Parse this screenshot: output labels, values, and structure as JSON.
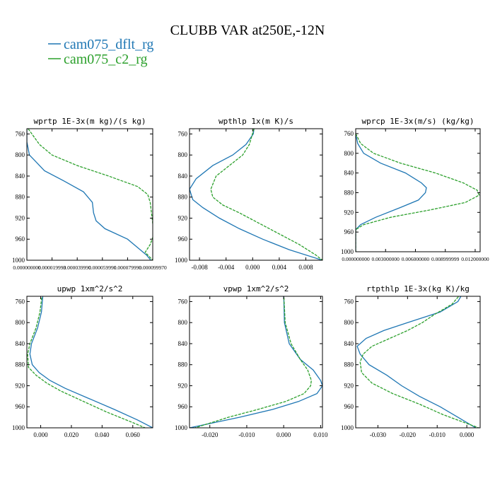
{
  "figure": {
    "title": "CLUBB VAR at250E,-12N",
    "legend": [
      {
        "name": "cam075_dflt_rg",
        "color": "#1f77b4"
      },
      {
        "name": "cam075_c2_rg",
        "color": "#2ca02c"
      }
    ]
  },
  "chart_data": [
    {
      "type": "line",
      "title": "wprtp  1E-3x(m kg)/(s kg)",
      "xlim": [
        0.0,
        0.0001
      ],
      "ylim": [
        1000,
        750
      ],
      "yticks": [
        760,
        800,
        840,
        880,
        920,
        960,
        1000
      ],
      "yticklabels": [
        "760",
        "800",
        "840",
        "880",
        "920",
        "960",
        "1000"
      ],
      "xticks": [
        0.0,
        2e-05,
        4e-05,
        6e-05,
        8e-05,
        0.0001
      ],
      "xticklabels": [
        "0.000000000",
        "0.000019993",
        "0.000039990",
        "0.000059990",
        "0.000079990",
        "0.000099970"
      ],
      "series": [
        {
          "name": "cam075_dflt_rg",
          "color": "#1f77b4",
          "dashed": false,
          "y": [
            750,
            775,
            800,
            810,
            830,
            850,
            870,
            890,
            910,
            925,
            940,
            960,
            980,
            990,
            1000
          ],
          "values": [
            0.0,
            0.0,
            2e-06,
            6e-06,
            1.4e-05,
            3e-05,
            4.5e-05,
            5.2e-05,
            5.3e-05,
            5.5e-05,
            6.2e-05,
            8e-05,
            9e-05,
            9.5e-05,
            9.85e-05
          ]
        },
        {
          "name": "cam075_c2_rg",
          "color": "#2ca02c",
          "dashed": true,
          "y": [
            750,
            760,
            780,
            800,
            820,
            840,
            860,
            875,
            890,
            910,
            930,
            950,
            970,
            985,
            1000
          ],
          "values": [
            1e-06,
            4e-06,
            1e-05,
            2e-05,
            4e-05,
            6.5e-05,
            8.8e-05,
            9.6e-05,
            9.8e-05,
            9.9e-05,
            0.0001,
            0.000101,
            9.8e-05,
            9.4e-05,
            0.0001
          ]
        }
      ]
    },
    {
      "type": "line",
      "title": "wpthlp  1x(m K)/s",
      "xlim": [
        -0.0095,
        0.0105
      ],
      "ylim": [
        1000,
        750
      ],
      "yticks": [
        760,
        800,
        840,
        880,
        920,
        960,
        1000
      ],
      "yticklabels": [
        "760",
        "800",
        "840",
        "880",
        "920",
        "960",
        "1000"
      ],
      "xticks": [
        -0.008,
        -0.004,
        0.0,
        0.004,
        0.008
      ],
      "xticklabels": [
        "-0.008",
        "-0.004",
        "0.000",
        "0.004",
        "0.008"
      ],
      "series": [
        {
          "name": "cam075_dflt_rg",
          "color": "#1f77b4",
          "dashed": false,
          "y": [
            750,
            760,
            780,
            800,
            820,
            845,
            865,
            885,
            900,
            920,
            940,
            960,
            980,
            1000
          ],
          "values": [
            0.0002,
            0.0001,
            -0.001,
            -0.003,
            -0.006,
            -0.0085,
            -0.0095,
            -0.009,
            -0.0075,
            -0.005,
            -0.002,
            0.0015,
            0.0055,
            0.0105
          ]
        },
        {
          "name": "cam075_c2_rg",
          "color": "#2ca02c",
          "dashed": true,
          "y": [
            750,
            780,
            800,
            820,
            840,
            865,
            880,
            895,
            910,
            930,
            950,
            970,
            990,
            1000
          ],
          "values": [
            0.0002,
            -0.0005,
            -0.0015,
            -0.0035,
            -0.0055,
            -0.0063,
            -0.006,
            -0.0045,
            -0.002,
            0.001,
            0.004,
            0.007,
            0.0095,
            0.0105
          ]
        }
      ]
    },
    {
      "type": "line",
      "title": "wprcp  1E-3x(m/s) (kg/kg)",
      "xlim": [
        0.0,
        0.0125
      ],
      "ylim": [
        1000,
        750
      ],
      "yticks": [
        760,
        800,
        840,
        880,
        920,
        960,
        1000
      ],
      "yticklabels": [
        "760",
        "800",
        "840",
        "880",
        "920",
        "960",
        "1000"
      ],
      "xticks": [
        0.0,
        0.003,
        0.006,
        0.009,
        0.012
      ],
      "xticklabels": [
        "0.000000000",
        "0.003000000",
        "0.006000000",
        "0.008999999",
        "0.012000000"
      ],
      "series": [
        {
          "name": "cam075_dflt_rg",
          "color": "#1f77b4",
          "dashed": false,
          "y": [
            760,
            780,
            800,
            820,
            840,
            860,
            870,
            880,
            895,
            910,
            930,
            945,
            955,
            1000
          ],
          "values": [
            0.0,
            0.0002,
            0.0008,
            0.0025,
            0.005,
            0.0066,
            0.0071,
            0.007,
            0.0063,
            0.0045,
            0.002,
            0.0005,
            0.0,
            0.0
          ]
        },
        {
          "name": "cam075_c2_rg",
          "color": "#2ca02c",
          "dashed": true,
          "y": [
            760,
            780,
            800,
            820,
            840,
            860,
            875,
            885,
            900,
            915,
            930,
            945,
            955,
            1000
          ],
          "values": [
            0.0,
            0.0005,
            0.0018,
            0.0045,
            0.008,
            0.0108,
            0.0122,
            0.0124,
            0.011,
            0.0075,
            0.0035,
            0.0008,
            0.0,
            0.0
          ]
        }
      ]
    },
    {
      "type": "line",
      "title": "upwp  1xm^2/s^2",
      "xlim": [
        -0.009,
        0.073
      ],
      "ylim": [
        1000,
        750
      ],
      "yticks": [
        760,
        800,
        840,
        880,
        920,
        960,
        1000
      ],
      "yticklabels": [
        "760",
        "800",
        "840",
        "880",
        "920",
        "960",
        "1000"
      ],
      "xticks": [
        0.0,
        0.02,
        0.04,
        0.06
      ],
      "xticklabels": [
        "0.000",
        "0.020",
        "0.040",
        "0.060"
      ],
      "series": [
        {
          "name": "cam075_dflt_rg",
          "color": "#1f77b4",
          "dashed": false,
          "y": [
            745,
            780,
            810,
            840,
            860,
            880,
            895,
            910,
            925,
            945,
            965,
            985,
            1000
          ],
          "values": [
            0.0015,
            0.0005,
            -0.002,
            -0.006,
            -0.007,
            -0.0055,
            -0.001,
            0.006,
            0.016,
            0.032,
            0.048,
            0.063,
            0.073
          ]
        },
        {
          "name": "cam075_c2_rg",
          "color": "#2ca02c",
          "dashed": true,
          "y": [
            745,
            780,
            810,
            840,
            860,
            885,
            900,
            915,
            930,
            950,
            970,
            990,
            1000
          ],
          "values": [
            0.001,
            -0.0005,
            -0.003,
            -0.007,
            -0.0085,
            -0.008,
            -0.003,
            0.004,
            0.013,
            0.028,
            0.043,
            0.06,
            0.068
          ]
        }
      ]
    },
    {
      "type": "line",
      "title": "vpwp  1xm^2/s^2",
      "xlim": [
        -0.0255,
        0.0105
      ],
      "ylim": [
        1000,
        750
      ],
      "yticks": [
        760,
        800,
        840,
        880,
        920,
        960,
        1000
      ],
      "yticklabels": [
        "760",
        "800",
        "840",
        "880",
        "920",
        "960",
        "1000"
      ],
      "xticks": [
        -0.02,
        -0.01,
        0.0,
        0.01
      ],
      "xticklabels": [
        "-0.020",
        "-0.010",
        "0.000",
        "0.010"
      ],
      "series": [
        {
          "name": "cam075_dflt_rg",
          "color": "#1f77b4",
          "dashed": false,
          "y": [
            745,
            800,
            840,
            870,
            890,
            910,
            920,
            935,
            950,
            965,
            980,
            1000
          ],
          "values": [
            0.0,
            0.0002,
            0.0015,
            0.0045,
            0.008,
            0.01,
            0.0105,
            0.009,
            0.004,
            -0.003,
            -0.012,
            -0.0255
          ]
        },
        {
          "name": "cam075_c2_rg",
          "color": "#2ca02c",
          "dashed": true,
          "y": [
            745,
            800,
            840,
            870,
            890,
            910,
            920,
            935,
            950,
            965,
            980,
            1000
          ],
          "values": [
            0.0,
            0.0004,
            0.002,
            0.0045,
            0.0065,
            0.0075,
            0.0073,
            0.0055,
            0.0005,
            -0.007,
            -0.015,
            -0.024
          ]
        }
      ]
    },
    {
      "type": "line",
      "title": "rtpthlp  1E-3x(kg K)/kg",
      "xlim": [
        -0.0375,
        0.0045
      ],
      "ylim": [
        1000,
        750
      ],
      "yticks": [
        760,
        800,
        840,
        880,
        920,
        960,
        1000
      ],
      "yticklabels": [
        "760",
        "800",
        "840",
        "880",
        "920",
        "960",
        "1000"
      ],
      "xticks": [
        -0.03,
        -0.02,
        -0.01,
        0.0
      ],
      "xticklabels": [
        "-0.030",
        "-0.020",
        "-0.010",
        "0.000"
      ],
      "series": [
        {
          "name": "cam075_dflt_rg",
          "color": "#1f77b4",
          "dashed": false,
          "y": [
            745,
            760,
            780,
            800,
            815,
            830,
            845,
            860,
            880,
            900,
            920,
            940,
            960,
            980,
            1000
          ],
          "values": [
            -0.0015,
            -0.003,
            -0.009,
            -0.02,
            -0.028,
            -0.034,
            -0.037,
            -0.036,
            -0.033,
            -0.027,
            -0.022,
            -0.016,
            -0.009,
            -0.003,
            0.003
          ]
        },
        {
          "name": "cam075_c2_rg",
          "color": "#2ca02c",
          "dashed": true,
          "y": [
            745,
            765,
            785,
            800,
            815,
            830,
            845,
            860,
            875,
            895,
            915,
            935,
            955,
            975,
            1000
          ],
          "values": [
            -0.002,
            -0.005,
            -0.011,
            -0.015,
            -0.02,
            -0.026,
            -0.032,
            -0.035,
            -0.036,
            -0.0355,
            -0.032,
            -0.025,
            -0.016,
            -0.008,
            0.004
          ]
        }
      ]
    }
  ]
}
